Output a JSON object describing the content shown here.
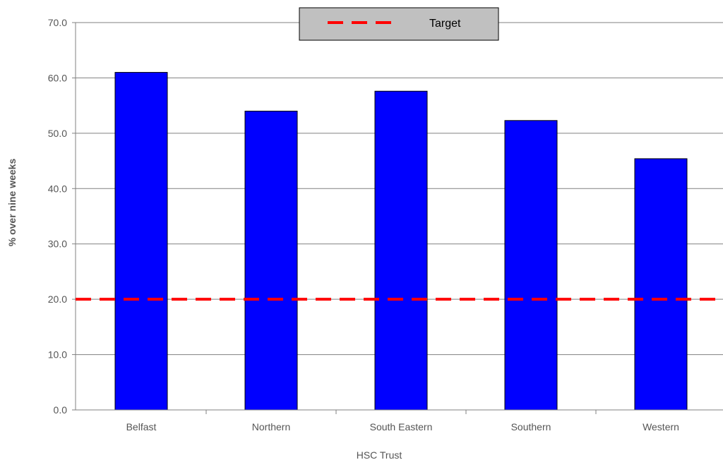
{
  "chart_data": {
    "type": "bar",
    "categories": [
      "Belfast",
      "Northern",
      "South Eastern",
      "Southern",
      "Western"
    ],
    "values": [
      61.0,
      54.0,
      57.6,
      52.3,
      45.4
    ],
    "xlabel": "HSC Trust",
    "ylabel": "% over nine weeks",
    "ylim": [
      0,
      70
    ],
    "yticks": [
      "0.0",
      "10.0",
      "20.0",
      "30.0",
      "40.0",
      "50.0",
      "60.0",
      "70.0"
    ],
    "grid": true,
    "legend": {
      "placement": "top-center",
      "entries": [
        {
          "name": "Target",
          "style": "dashed",
          "color": "#ff0000"
        }
      ]
    },
    "target": {
      "name": "Target",
      "value": 20
    },
    "colors": {
      "bar": "#0000ff",
      "bar_border": "#000000",
      "target_line": "#ff0000",
      "grid": "#808080",
      "legend_bg": "#c0c0c0"
    }
  }
}
